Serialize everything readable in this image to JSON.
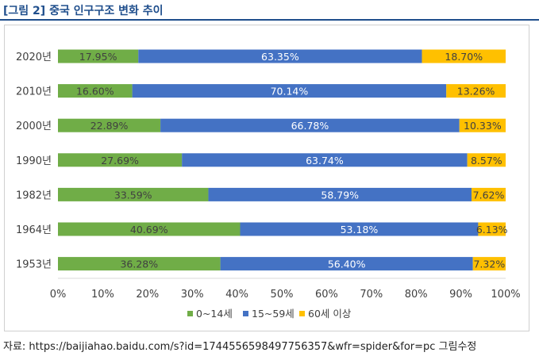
{
  "header": {
    "label": "[그림 2]",
    "title": "중국 인구구조 변화 추이"
  },
  "source": "자료: https://baijiahao.baidu.com/s?id=1744556598497756357&wfr=spider&for=pc 그림수정",
  "colors": {
    "series_0_14": "#70ad47",
    "series_15_59": "#4472c4",
    "series_60": "#ffc000",
    "title": "#1f4e8c"
  },
  "chart_data": {
    "type": "bar",
    "orientation": "horizontal",
    "stacked": "100%",
    "categories": [
      "2020년",
      "2010년",
      "2000년",
      "1990년",
      "1982년",
      "1964년",
      "1953년"
    ],
    "series": [
      {
        "name": "0~14세",
        "values": [
          17.95,
          16.6,
          22.89,
          27.69,
          33.59,
          40.69,
          36.28
        ],
        "labels": [
          "17.95%",
          "16.60%",
          "22.89%",
          "27.69%",
          "33.59%",
          "40.69%",
          "36.28%"
        ]
      },
      {
        "name": "15~59세",
        "values": [
          63.35,
          70.14,
          66.78,
          63.74,
          58.79,
          53.18,
          56.4
        ],
        "labels": [
          "63.35%",
          "70.14%",
          "66.78%",
          "63.74%",
          "58.79%",
          "53.18%",
          "56.40%"
        ]
      },
      {
        "name": "60세 이상",
        "values": [
          18.7,
          13.26,
          10.33,
          8.57,
          7.62,
          6.13,
          7.32
        ],
        "labels": [
          "18.70%",
          "13.26%",
          "10.33%",
          "8.57%",
          "7.62%",
          "6.13%",
          "7.32%"
        ]
      }
    ],
    "xlim": [
      0,
      100
    ],
    "xticks": [
      "0%",
      "10%",
      "20%",
      "30%",
      "40%",
      "50%",
      "60%",
      "70%",
      "80%",
      "90%",
      "100%"
    ],
    "grid": false,
    "legend": "bottom"
  }
}
